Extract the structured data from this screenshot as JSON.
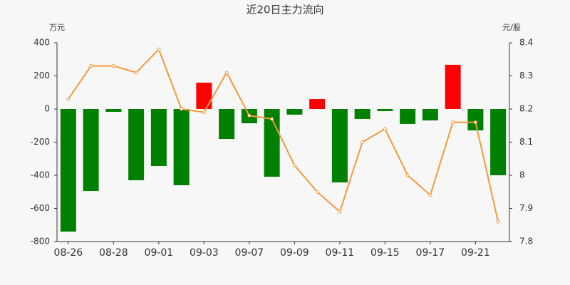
{
  "chart_data": {
    "type": "bar_line",
    "title": "近20日主力流向",
    "y_label": "万元",
    "y2_label": "元/股",
    "categories": [
      "08-26",
      null,
      "08-28",
      null,
      "09-01",
      null,
      "09-03",
      null,
      "09-07",
      null,
      "09-09",
      null,
      "09-11",
      null,
      "09-15",
      null,
      "09-17",
      null,
      "09-21",
      null
    ],
    "series": [
      {
        "type": "bar",
        "positive_color": "#ff0000",
        "negative_color": "#008000",
        "values": [
          -740,
          -495,
          -17,
          -430,
          -344,
          -460,
          159,
          -181,
          -86,
          -409,
          -34,
          60,
          -443,
          -60,
          -13,
          -90,
          -69,
          267,
          -129,
          -400
        ]
      },
      {
        "type": "line",
        "axis": "y2",
        "color": "#f39a3c",
        "values": [
          8.23,
          8.33,
          8.33,
          8.31,
          8.38,
          8.2,
          8.19,
          8.31,
          8.18,
          8.17,
          8.03,
          7.95,
          7.89,
          8.1,
          8.14,
          8.0,
          7.94,
          8.16,
          8.16,
          7.86
        ]
      }
    ],
    "ylim": [
      -800,
      400
    ],
    "yticks": [
      400,
      200,
      0,
      -200,
      -400,
      -600,
      -800
    ],
    "y2lim": [
      7.8,
      8.4
    ],
    "y2ticks": [
      8.4,
      8.3,
      8.2,
      8.1,
      8,
      7.9,
      7.8
    ]
  }
}
